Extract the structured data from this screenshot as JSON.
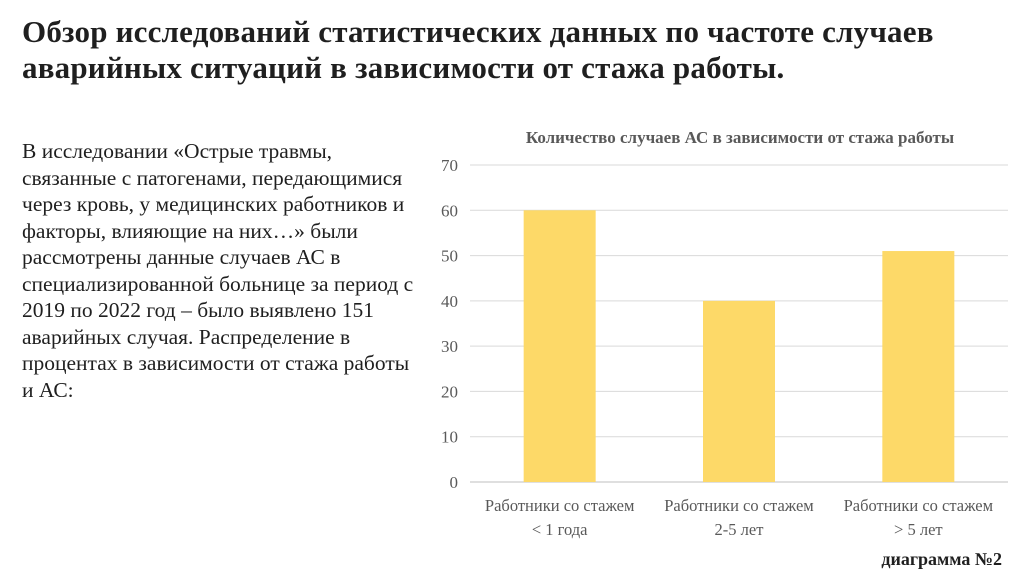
{
  "slide": {
    "title": "Обзор исследований статистических данных по частоте случаев аварийных ситуаций в зависимости от стажа работы.",
    "body": "В исследовании «Острые травмы, связанные с патогенами, передающимися через кровь, у медицинских работников и факторы, влияющие на них…» были рассмотрены данные случаев АС в специализированной больнице за период с 2019 по 2022 год – было выявлено 151 аварийных случая. Распределение в процентах в зависимости от стажа работы и АС:",
    "caption": "диаграмма №2"
  },
  "chart_data": {
    "type": "bar",
    "title": "Количество случаев АС в зависимости от стажа работы",
    "categories": [
      [
        "Работники со стажем",
        "< 1 года"
      ],
      [
        "Работники со стажем",
        "2-5 лет"
      ],
      [
        "Работники со стажем",
        "> 5 лет"
      ]
    ],
    "values": [
      60,
      40,
      51
    ],
    "ylim": [
      0,
      70
    ],
    "yticks": [
      0,
      10,
      20,
      30,
      40,
      50,
      60,
      70
    ],
    "grid": true,
    "legend": "none",
    "colors": {
      "bar": "#FDD968",
      "grid": "#D9D9D9",
      "axis": "#BFBFBF",
      "tick_text": "#595959",
      "title_text": "#595959"
    }
  }
}
